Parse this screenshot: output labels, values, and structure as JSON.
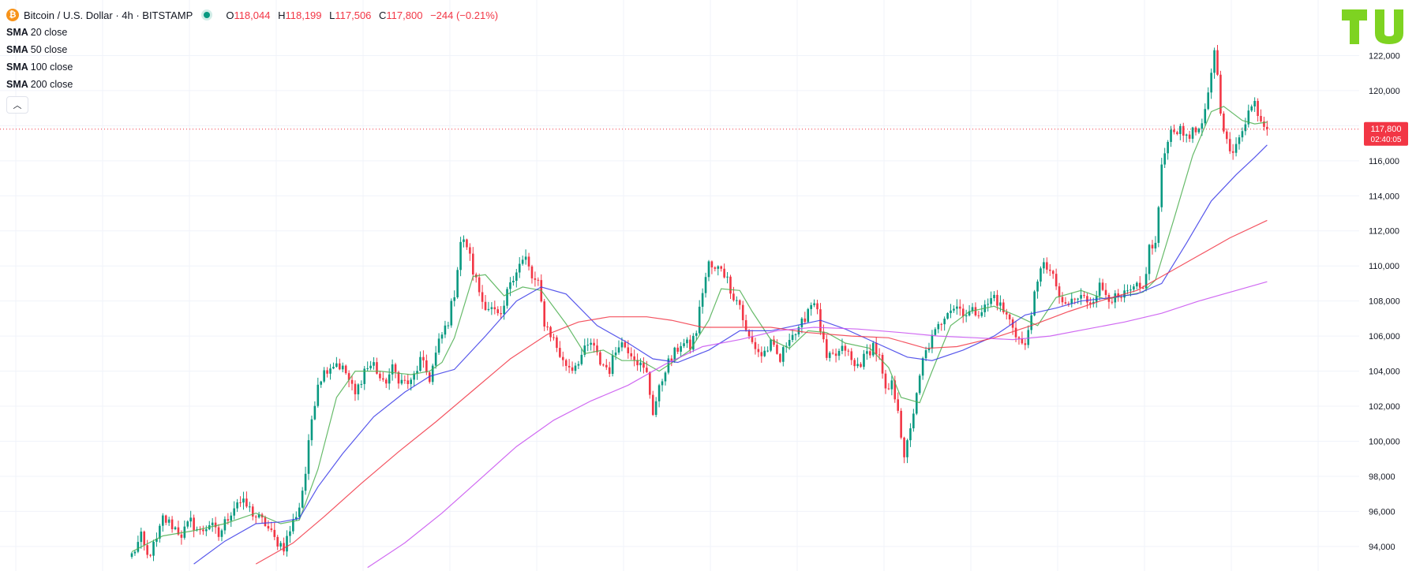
{
  "header": {
    "coin_symbol": "₿",
    "title": "Bitcoin / U.S. Dollar · 4h · BITSTAMP",
    "ohlc": {
      "o_label": "O",
      "o": "118,044",
      "h_label": "H",
      "h": "118,199",
      "l_label": "L",
      "l": "117,506",
      "c_label": "C",
      "c": "117,800",
      "change": "−244 (−0.21%)"
    }
  },
  "indicators": [
    {
      "name": "SMA",
      "param": "20 close",
      "color": "#4caf50"
    },
    {
      "name": "SMA",
      "param": "50 close",
      "color": "#3a3ae8"
    },
    {
      "name": "SMA",
      "param": "100 close",
      "color": "#f23645"
    },
    {
      "name": "SMA",
      "param": "200 close",
      "color": "#c850f0"
    }
  ],
  "collapse_icon": "chevron-up-icon",
  "price_label": {
    "price": "117,800",
    "countdown": "02:40:05",
    "color": "#f23645"
  },
  "colors": {
    "up": "#089981",
    "down": "#f23645",
    "grid": "#f0f3fa",
    "text": "#131722"
  },
  "chart_data": {
    "type": "candlestick",
    "title": "Bitcoin / U.S. Dollar · 4h · BITSTAMP",
    "ylim": [
      92600,
      123000
    ],
    "yticks": [
      94000,
      96000,
      98000,
      100000,
      102000,
      104000,
      106000,
      108000,
      110000,
      112000,
      114000,
      116000,
      118000,
      120000,
      122000
    ],
    "ytick_labels": [
      "94,000",
      "96,000",
      "98,000",
      "100,000",
      "102,000",
      "104,000",
      "106,000",
      "108,000",
      "110,000",
      "112,000",
      "114,000",
      "116,000",
      "118,000",
      "120,000",
      "122,000"
    ],
    "last_price": 117800,
    "close_path": [
      [
        0,
        93500
      ],
      [
        3,
        94500
      ],
      [
        5,
        93400
      ],
      [
        8,
        94300
      ],
      [
        10,
        95600
      ],
      [
        13,
        95200
      ],
      [
        16,
        94700
      ],
      [
        19,
        95400
      ],
      [
        22,
        94800
      ],
      [
        25,
        95300
      ],
      [
        28,
        94600
      ],
      [
        31,
        95700
      ],
      [
        34,
        96600
      ],
      [
        37,
        96300
      ],
      [
        40,
        95700
      ],
      [
        43,
        95300
      ],
      [
        46,
        94400
      ],
      [
        49,
        94000
      ],
      [
        52,
        95400
      ],
      [
        54,
        96300
      ],
      [
        56,
        98200
      ],
      [
        58,
        101300
      ],
      [
        60,
        103400
      ],
      [
        63,
        104200
      ],
      [
        66,
        104500
      ],
      [
        69,
        103900
      ],
      [
        72,
        102600
      ],
      [
        75,
        104100
      ],
      [
        78,
        104400
      ],
      [
        81,
        103200
      ],
      [
        84,
        104100
      ],
      [
        87,
        103400
      ],
      [
        90,
        103300
      ],
      [
        93,
        104600
      ],
      [
        96,
        103600
      ],
      [
        99,
        105600
      ],
      [
        102,
        106900
      ],
      [
        104,
        108500
      ],
      [
        106,
        111400
      ],
      [
        108,
        111200
      ],
      [
        110,
        109700
      ],
      [
        113,
        108000
      ],
      [
        116,
        107500
      ],
      [
        119,
        106900
      ],
      [
        122,
        109200
      ],
      [
        125,
        110100
      ],
      [
        127,
        110400
      ],
      [
        129,
        109300
      ],
      [
        131,
        108900
      ],
      [
        133,
        106800
      ],
      [
        136,
        105800
      ],
      [
        139,
        104500
      ],
      [
        142,
        104200
      ],
      [
        145,
        104900
      ],
      [
        148,
        105600
      ],
      [
        151,
        104500
      ],
      [
        154,
        104100
      ],
      [
        157,
        105700
      ],
      [
        160,
        105300
      ],
      [
        162,
        104900
      ],
      [
        164,
        104300
      ],
      [
        166,
        103800
      ],
      [
        168,
        101700
      ],
      [
        170,
        102900
      ],
      [
        172,
        104200
      ],
      [
        174,
        104700
      ],
      [
        177,
        105600
      ],
      [
        180,
        105400
      ],
      [
        182,
        106300
      ],
      [
        184,
        108600
      ],
      [
        186,
        110100
      ],
      [
        188,
        109700
      ],
      [
        190,
        110000
      ],
      [
        192,
        109200
      ],
      [
        194,
        108300
      ],
      [
        196,
        107800
      ],
      [
        198,
        106200
      ],
      [
        200,
        105600
      ],
      [
        203,
        104900
      ],
      [
        206,
        105500
      ],
      [
        209,
        104600
      ],
      [
        212,
        106100
      ],
      [
        215,
        106200
      ],
      [
        218,
        107600
      ],
      [
        220,
        108100
      ],
      [
        222,
        106400
      ],
      [
        224,
        104600
      ],
      [
        227,
        104900
      ],
      [
        230,
        105300
      ],
      [
        233,
        104200
      ],
      [
        236,
        104700
      ],
      [
        239,
        105500
      ],
      [
        241,
        104700
      ],
      [
        243,
        102700
      ],
      [
        245,
        103200
      ],
      [
        247,
        102000
      ],
      [
        249,
        98800
      ],
      [
        251,
        100900
      ],
      [
        253,
        102500
      ],
      [
        255,
        104600
      ],
      [
        257,
        105500
      ],
      [
        260,
        106500
      ],
      [
        263,
        107600
      ],
      [
        266,
        107700
      ],
      [
        269,
        107300
      ],
      [
        272,
        107400
      ],
      [
        275,
        107600
      ],
      [
        278,
        108300
      ],
      [
        281,
        107400
      ],
      [
        284,
        106600
      ],
      [
        286,
        105800
      ],
      [
        288,
        105300
      ],
      [
        290,
        107500
      ],
      [
        292,
        108900
      ],
      [
        294,
        110400
      ],
      [
        296,
        109600
      ],
      [
        298,
        108900
      ],
      [
        300,
        107600
      ],
      [
        303,
        108000
      ],
      [
        306,
        108200
      ],
      [
        309,
        108000
      ],
      [
        312,
        108800
      ],
      [
        315,
        108300
      ],
      [
        318,
        108000
      ],
      [
        321,
        108400
      ],
      [
        324,
        108700
      ],
      [
        326,
        108600
      ],
      [
        328,
        111000
      ],
      [
        330,
        111200
      ],
      [
        332,
        115500
      ],
      [
        334,
        117400
      ],
      [
        336,
        117900
      ],
      [
        339,
        117500
      ],
      [
        342,
        117600
      ],
      [
        345,
        117800
      ],
      [
        347,
        119700
      ],
      [
        349,
        122500
      ],
      [
        351,
        119000
      ],
      [
        353,
        117000
      ],
      [
        355,
        116200
      ],
      [
        357,
        117500
      ],
      [
        360,
        118800
      ],
      [
        362,
        119300
      ],
      [
        364,
        118400
      ],
      [
        366,
        117800
      ]
    ],
    "series": [
      {
        "name": "SMA 20 close",
        "color": "#4caf50",
        "points": [
          [
            0,
            93700
          ],
          [
            10,
            94600
          ],
          [
            20,
            94900
          ],
          [
            30,
            95300
          ],
          [
            40,
            95900
          ],
          [
            48,
            95300
          ],
          [
            54,
            95500
          ],
          [
            60,
            98400
          ],
          [
            66,
            102500
          ],
          [
            72,
            104000
          ],
          [
            80,
            104000
          ],
          [
            90,
            103800
          ],
          [
            96,
            104000
          ],
          [
            100,
            104500
          ],
          [
            104,
            105900
          ],
          [
            110,
            109400
          ],
          [
            114,
            109500
          ],
          [
            120,
            108300
          ],
          [
            126,
            108800
          ],
          [
            132,
            108600
          ],
          [
            140,
            106700
          ],
          [
            146,
            105000
          ],
          [
            152,
            105200
          ],
          [
            158,
            104600
          ],
          [
            164,
            104600
          ],
          [
            170,
            104000
          ],
          [
            176,
            104700
          ],
          [
            180,
            105200
          ],
          [
            186,
            106900
          ],
          [
            190,
            108700
          ],
          [
            196,
            108600
          ],
          [
            200,
            107400
          ],
          [
            206,
            105800
          ],
          [
            212,
            105300
          ],
          [
            218,
            106300
          ],
          [
            224,
            106200
          ],
          [
            230,
            105600
          ],
          [
            238,
            105300
          ],
          [
            244,
            104200
          ],
          [
            248,
            102500
          ],
          [
            254,
            102200
          ],
          [
            258,
            104000
          ],
          [
            264,
            106600
          ],
          [
            270,
            107400
          ],
          [
            278,
            107700
          ],
          [
            286,
            107100
          ],
          [
            292,
            106600
          ],
          [
            298,
            108200
          ],
          [
            306,
            108600
          ],
          [
            314,
            108100
          ],
          [
            320,
            108300
          ],
          [
            326,
            108500
          ],
          [
            330,
            109200
          ],
          [
            336,
            112700
          ],
          [
            342,
            116300
          ],
          [
            348,
            118800
          ],
          [
            352,
            119100
          ],
          [
            358,
            118300
          ],
          [
            362,
            118100
          ],
          [
            366,
            118200
          ]
        ]
      },
      {
        "name": "SMA 50 close",
        "color": "#3a3ae8",
        "points": [
          [
            20,
            93000
          ],
          [
            30,
            94300
          ],
          [
            40,
            95300
          ],
          [
            48,
            95400
          ],
          [
            54,
            95600
          ],
          [
            60,
            97400
          ],
          [
            68,
            99300
          ],
          [
            78,
            101400
          ],
          [
            88,
            102800
          ],
          [
            96,
            103700
          ],
          [
            104,
            104100
          ],
          [
            114,
            106000
          ],
          [
            124,
            108000
          ],
          [
            132,
            108800
          ],
          [
            140,
            108400
          ],
          [
            150,
            106600
          ],
          [
            160,
            105600
          ],
          [
            168,
            104700
          ],
          [
            176,
            104500
          ],
          [
            186,
            105200
          ],
          [
            196,
            106300
          ],
          [
            206,
            106300
          ],
          [
            214,
            106600
          ],
          [
            222,
            106900
          ],
          [
            230,
            106400
          ],
          [
            240,
            105600
          ],
          [
            250,
            104800
          ],
          [
            258,
            104600
          ],
          [
            268,
            105200
          ],
          [
            278,
            106000
          ],
          [
            288,
            107200
          ],
          [
            298,
            107600
          ],
          [
            306,
            108000
          ],
          [
            316,
            108200
          ],
          [
            324,
            108400
          ],
          [
            332,
            109000
          ],
          [
            340,
            111300
          ],
          [
            348,
            113700
          ],
          [
            356,
            115200
          ],
          [
            362,
            116200
          ],
          [
            366,
            116900
          ]
        ]
      },
      {
        "name": "SMA 100 close",
        "color": "#f23645",
        "points": [
          [
            40,
            93000
          ],
          [
            52,
            94200
          ],
          [
            62,
            95700
          ],
          [
            74,
            97600
          ],
          [
            86,
            99400
          ],
          [
            98,
            101100
          ],
          [
            110,
            102900
          ],
          [
            122,
            104700
          ],
          [
            134,
            106100
          ],
          [
            144,
            106800
          ],
          [
            154,
            107100
          ],
          [
            166,
            107100
          ],
          [
            174,
            106900
          ],
          [
            184,
            106500
          ],
          [
            194,
            106500
          ],
          [
            206,
            106500
          ],
          [
            218,
            106200
          ],
          [
            232,
            106000
          ],
          [
            244,
            105900
          ],
          [
            256,
            105300
          ],
          [
            266,
            105400
          ],
          [
            278,
            105900
          ],
          [
            290,
            106600
          ],
          [
            302,
            107400
          ],
          [
            314,
            108100
          ],
          [
            324,
            108600
          ],
          [
            334,
            109600
          ],
          [
            344,
            110600
          ],
          [
            354,
            111600
          ],
          [
            366,
            112600
          ]
        ]
      },
      {
        "name": "SMA 200 close",
        "color": "#c850f0",
        "points": [
          [
            76,
            92800
          ],
          [
            88,
            94200
          ],
          [
            100,
            95900
          ],
          [
            112,
            97800
          ],
          [
            124,
            99700
          ],
          [
            136,
            101200
          ],
          [
            148,
            102300
          ],
          [
            160,
            103200
          ],
          [
            172,
            104400
          ],
          [
            184,
            105400
          ],
          [
            196,
            105800
          ],
          [
            208,
            106300
          ],
          [
            220,
            106500
          ],
          [
            234,
            106400
          ],
          [
            248,
            106200
          ],
          [
            260,
            106000
          ],
          [
            272,
            105900
          ],
          [
            284,
            105800
          ],
          [
            296,
            106000
          ],
          [
            308,
            106400
          ],
          [
            320,
            106800
          ],
          [
            332,
            107300
          ],
          [
            344,
            108000
          ],
          [
            356,
            108600
          ],
          [
            366,
            109100
          ]
        ]
      }
    ]
  }
}
